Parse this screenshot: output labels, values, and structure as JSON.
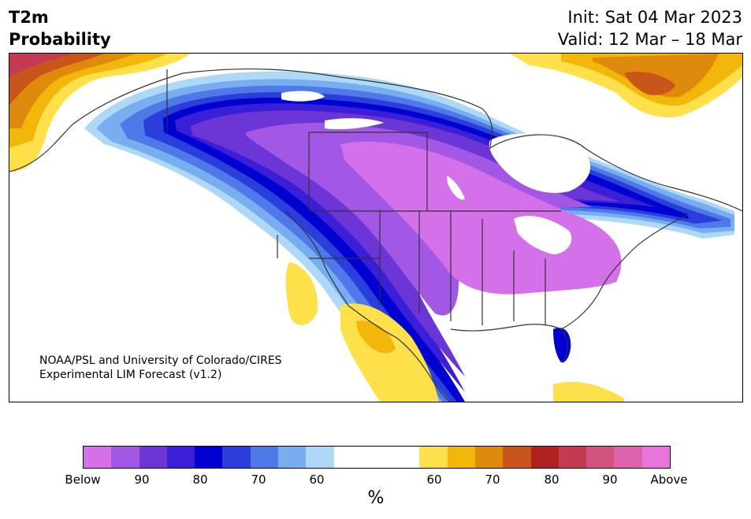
{
  "header": {
    "title_line1": "T2m",
    "title_line2": "Probability",
    "init": "Init: Sat 04 Mar 2023",
    "valid": "Valid: 12 Mar – 18 Mar"
  },
  "map": {
    "credit_line1": "NOAA/PSL and University of Colorado/CIRES",
    "credit_line2": "Experimental LIM Forecast (v1.2)"
  },
  "colorbar": {
    "unit": "%",
    "ticks": [
      "Below",
      "90",
      "80",
      "70",
      "60",
      "60",
      "70",
      "80",
      "90",
      "Above"
    ],
    "below_colors": [
      "#d470ea",
      "#a258e4",
      "#6c36d6",
      "#3a1ed8",
      "#0000d0",
      "#2a3edc",
      "#4f78e8",
      "#78aef0",
      "#aed8f8"
    ],
    "neutral_color": "#ffffff",
    "above_colors": [
      "#fde04a",
      "#f2b70a",
      "#de8a0c",
      "#c8561a",
      "#b02222",
      "#c43a52",
      "#d25380",
      "#de63ac",
      "#e874dc"
    ]
  }
}
